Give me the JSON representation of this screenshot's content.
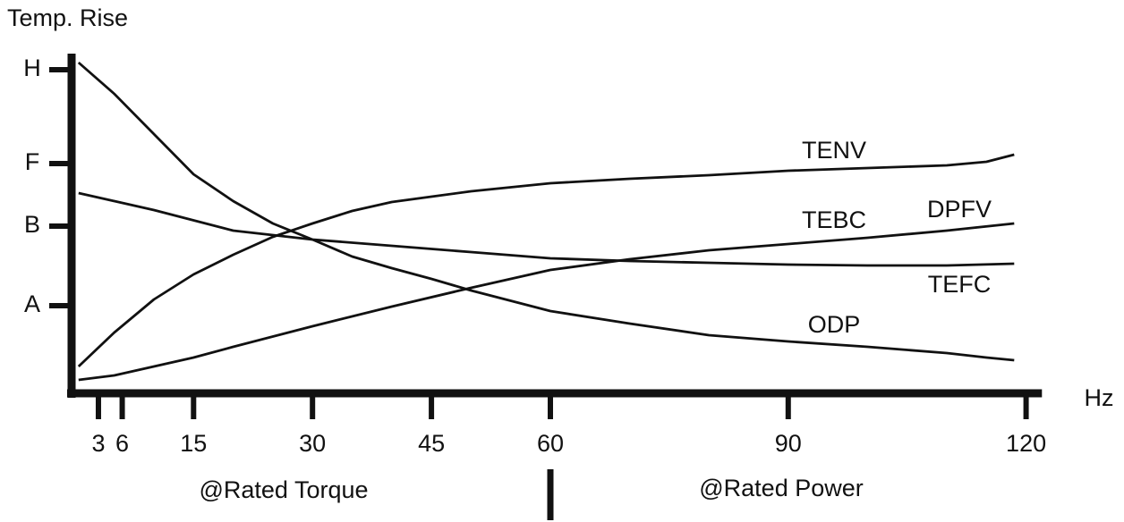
{
  "chart_data": {
    "type": "line",
    "y_label": "Temp. Rise",
    "x_label": "Hz",
    "annotations": [
      "@Rated Torque",
      "@Rated Power",
      "TEBC"
    ],
    "xlim": [
      0,
      122
    ],
    "xticks": [
      3,
      6,
      15,
      30,
      45,
      60,
      90,
      120
    ],
    "ylim": [
      0,
      375
    ],
    "yticks": [
      {
        "value": 98,
        "label": "A"
      },
      {
        "value": 187,
        "label": "B"
      },
      {
        "value": 257,
        "label": "F"
      },
      {
        "value": 362,
        "label": "H"
      }
    ],
    "series": [
      {
        "name": "TENV",
        "color": "#111111",
        "x": [
          0.5,
          5,
          10,
          15,
          20,
          25,
          30,
          35,
          40,
          45,
          50,
          60,
          70,
          80,
          90,
          100,
          110,
          115,
          118.5
        ],
        "values": [
          30,
          68,
          105,
          133,
          155,
          175,
          190,
          204,
          214,
          220,
          226,
          235,
          240,
          244,
          249,
          252,
          255,
          259,
          267
        ]
      },
      {
        "name": "DPFV",
        "color": "#111111",
        "x": [
          0.5,
          5,
          10,
          15,
          20,
          30,
          40,
          50,
          60,
          70,
          80,
          90,
          100,
          110,
          118.5
        ],
        "values": [
          15,
          20,
          30,
          40,
          52,
          75,
          97,
          118,
          138,
          150,
          160,
          167,
          174,
          182,
          190
        ]
      },
      {
        "name": "TEFC",
        "color": "#111111",
        "x": [
          0.5,
          10,
          20,
          30,
          40,
          50,
          60,
          70,
          80,
          90,
          100,
          110,
          118.5
        ],
        "values": [
          224,
          205,
          182,
          172,
          165,
          158,
          151,
          148,
          146,
          144,
          143,
          143,
          145
        ]
      },
      {
        "name": "ODP",
        "color": "#111111",
        "x": [
          0.5,
          5,
          10,
          15,
          20,
          25,
          30,
          35,
          40,
          45,
          50,
          60,
          70,
          80,
          90,
          100,
          110,
          115,
          118.5
        ],
        "values": [
          370,
          335,
          290,
          245,
          215,
          190,
          172,
          153,
          140,
          128,
          115,
          92,
          78,
          65,
          58,
          52,
          45,
          40,
          37
        ]
      }
    ]
  }
}
